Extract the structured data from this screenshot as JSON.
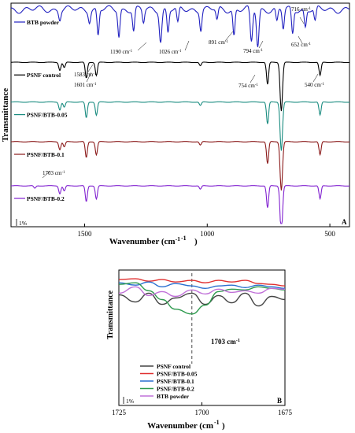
{
  "chart_data": [
    {
      "panel": "A",
      "type": "line",
      "xlabel": "Wavenumber (cm",
      "xlabel_sup": "-1",
      "xlabel_close": ")",
      "ylabel": "Transmittance",
      "xlim": [
        1800,
        420
      ],
      "x_reversed": true,
      "xticks": [
        1500,
        1000,
        500
      ],
      "scale_bar": "1%",
      "grid": false,
      "legend": "inline",
      "series": [
        {
          "name": "BTB powder",
          "color": "#2020c0",
          "offset": 0.0,
          "peaks": [
            [
              1601,
              1.0
            ],
            [
              1480,
              1.2
            ],
            [
              1445,
              3.0
            ],
            [
              1360,
              3.0
            ],
            [
              1300,
              2.5
            ],
            [
              1260,
              1.5
            ],
            [
              1190,
              3.5
            ],
            [
              1160,
              2.6
            ],
            [
              1120,
              1.8
            ],
            [
              1026,
              2.2
            ],
            [
              960,
              1.3
            ],
            [
              891,
              3.0
            ],
            [
              820,
              3.8
            ],
            [
              794,
              4.2
            ],
            [
              716,
              1.5
            ],
            [
              690,
              2.2
            ],
            [
              652,
              2.8
            ],
            [
              600,
              2.0
            ],
            [
              560,
              1.5
            ]
          ]
        },
        {
          "name": "PSNF control",
          "color": "#000000",
          "offset": 6.0,
          "peaks": [
            [
              1601,
              0.9
            ],
            [
              1583,
              0.6
            ],
            [
              1493,
              1.8
            ],
            [
              1452,
              1.5
            ],
            [
              1028,
              0.4
            ],
            [
              754,
              2.5
            ],
            [
              698,
              5.5
            ],
            [
              540,
              1.5
            ]
          ]
        },
        {
          "name": "PSNF/BTB-0.05",
          "color": "#1a8c80",
          "offset": 10.5,
          "peaks": [
            [
              1601,
              0.9
            ],
            [
              1583,
              0.6
            ],
            [
              1493,
              1.8
            ],
            [
              1452,
              1.5
            ],
            [
              1028,
              0.4
            ],
            [
              754,
              2.5
            ],
            [
              698,
              5.5
            ],
            [
              540,
              1.5
            ]
          ]
        },
        {
          "name": "PSNF/BTB-0.1",
          "color": "#8b1a1a",
          "offset": 15.0,
          "peaks": [
            [
              1601,
              0.9
            ],
            [
              1583,
              0.6
            ],
            [
              1493,
              1.8
            ],
            [
              1452,
              1.5
            ],
            [
              1028,
              0.4
            ],
            [
              754,
              2.5
            ],
            [
              698,
              5.5
            ],
            [
              540,
              1.5
            ]
          ]
        },
        {
          "name": "PSNF/BTB-0.2",
          "color": "#8020d0",
          "offset": 20.0,
          "peaks": [
            [
              1703,
              0.3
            ],
            [
              1601,
              0.9
            ],
            [
              1583,
              0.6
            ],
            [
              1493,
              1.8
            ],
            [
              1452,
              1.5
            ],
            [
              1028,
              0.4
            ],
            [
              754,
              2.5
            ],
            [
              698,
              5.5
            ],
            [
              540,
              1.5
            ]
          ]
        }
      ],
      "annotations": [
        {
          "text": "716 cm",
          "sup": "-1",
          "x": 716,
          "series": 0
        },
        {
          "text": "1190 cm",
          "sup": "-1",
          "x": 1190,
          "series": 0
        },
        {
          "text": "1026 cm",
          "sup": "-1",
          "x": 1026,
          "series": 0
        },
        {
          "text": "891 cm",
          "sup": "-1",
          "x": 891,
          "series": 0
        },
        {
          "text": "794 cm",
          "sup": "-1",
          "x": 794,
          "series": 0
        },
        {
          "text": "652 cm",
          "sup": "-1",
          "x": 652,
          "series": 0
        },
        {
          "text": "1583 cm",
          "sup": "-1",
          "x": 1583,
          "series": 1
        },
        {
          "text": "1601 cm",
          "sup": "-1",
          "x": 1601,
          "series": 1
        },
        {
          "text": "754 cm",
          "sup": "-1",
          "x": 754,
          "series": 1
        },
        {
          "text": "540 cm",
          "sup": "-1",
          "x": 540,
          "series": 1
        },
        {
          "text": "1703 cm",
          "sup": "-1",
          "x": 1703,
          "series": 4
        }
      ]
    },
    {
      "panel": "B",
      "type": "line",
      "xlabel": "Wavenumber (cm",
      "xlabel_sup": "-1",
      "xlabel_close": ")",
      "ylabel": "Transmittance",
      "xlim": [
        1725,
        1675
      ],
      "x_reversed": true,
      "xticks": [
        1725,
        1700,
        1675
      ],
      "scale_bar": "1%",
      "grid": false,
      "legend": "bottom-left",
      "marker_line": {
        "x": 1703,
        "label": "1703 cm",
        "sup": "-1"
      },
      "series": [
        {
          "name": "PSNF control",
          "color": "#444444",
          "x": [
            1725,
            1720,
            1716,
            1712,
            1708,
            1703,
            1699,
            1695,
            1691,
            1687,
            1683,
            1679,
            1675
          ],
          "y": [
            7.8,
            6.9,
            8.0,
            6.6,
            7.4,
            8.0,
            6.6,
            7.7,
            6.8,
            8.0,
            6.4,
            7.6,
            7.2
          ]
        },
        {
          "name": "PSNF/BTB-0.05",
          "color": "#e03030",
          "x": [
            1725,
            1720,
            1716,
            1712,
            1708,
            1703,
            1699,
            1695,
            1691,
            1687,
            1683,
            1679,
            1675
          ],
          "y": [
            9.7,
            9.8,
            9.5,
            9.7,
            9.4,
            9.6,
            9.3,
            9.6,
            9.4,
            9.6,
            9.2,
            9.1,
            8.9
          ]
        },
        {
          "name": "PSNF/BTB-0.1",
          "color": "#2a6fcf",
          "x": [
            1725,
            1720,
            1716,
            1712,
            1708,
            1703,
            1699,
            1695,
            1691,
            1687,
            1683,
            1679,
            1675
          ],
          "y": [
            9.3,
            9.0,
            9.4,
            8.8,
            9.2,
            8.9,
            8.6,
            8.9,
            9.0,
            8.7,
            9.0,
            8.8,
            8.6
          ]
        },
        {
          "name": "PSNF/BTB-0.2",
          "color": "#2e9a4e",
          "x": [
            1725,
            1720,
            1716,
            1712,
            1708,
            1703,
            1699,
            1695,
            1691,
            1687,
            1683,
            1679,
            1675
          ],
          "y": [
            9.1,
            9.3,
            8.3,
            7.2,
            6.0,
            5.4,
            6.5,
            8.2,
            8.5,
            8.4,
            8.8,
            8.6,
            8.4
          ]
        },
        {
          "name": "BTB powder",
          "color": "#c070d8",
          "x": [
            1725,
            1720,
            1716,
            1712,
            1708,
            1703,
            1699,
            1695,
            1691,
            1687,
            1683,
            1679,
            1675
          ],
          "y": [
            8.0,
            8.8,
            7.7,
            8.2,
            7.6,
            8.4,
            7.9,
            8.5,
            8.1,
            8.3,
            8.0,
            8.6,
            8.5
          ]
        }
      ]
    }
  ]
}
